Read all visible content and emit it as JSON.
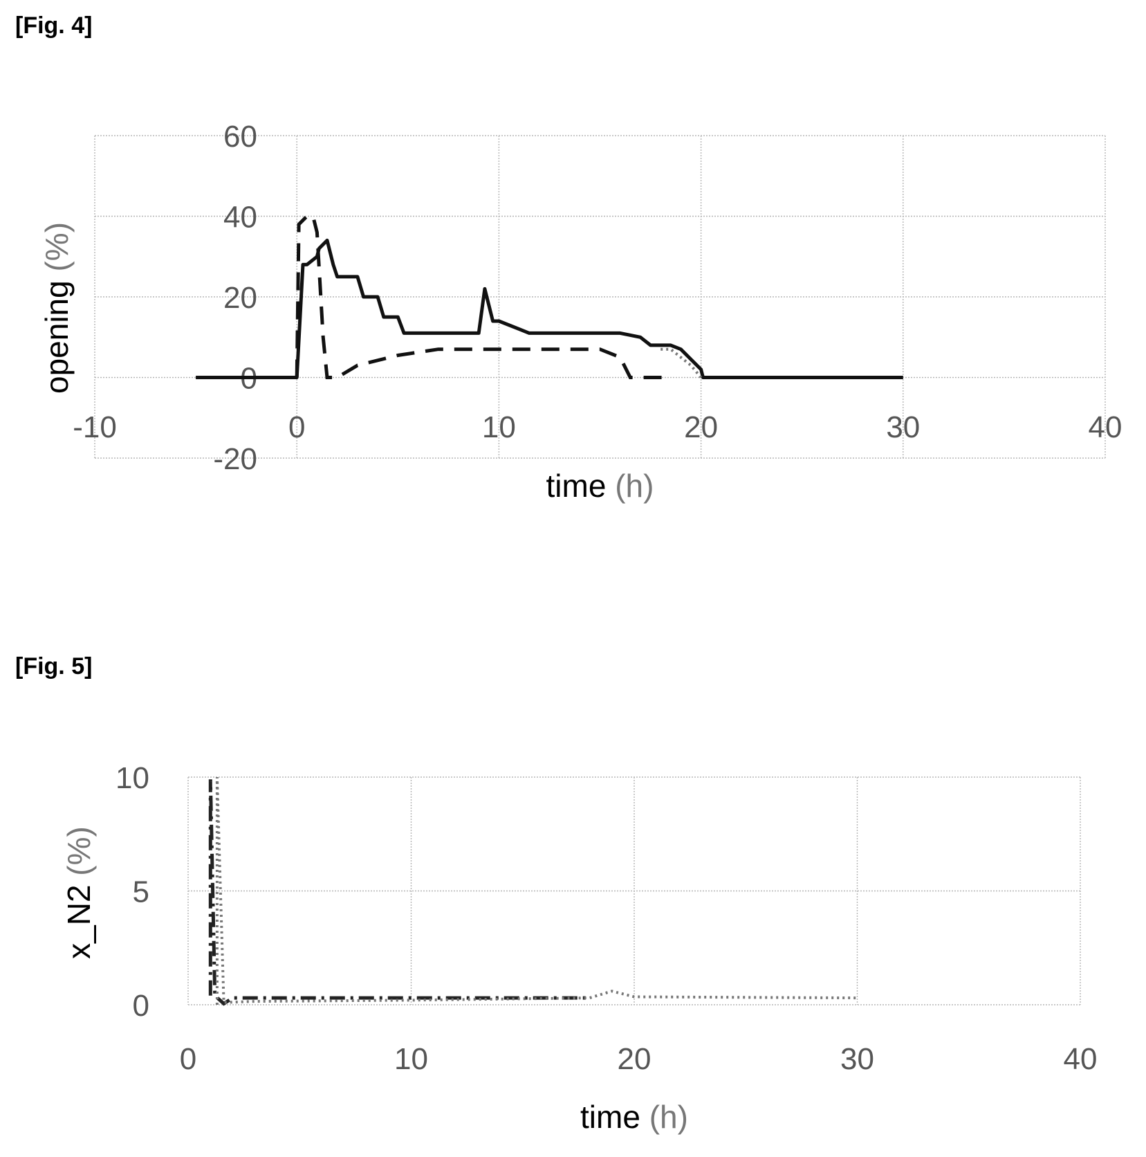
{
  "figures": [
    {
      "label": "[Fig. 4]"
    },
    {
      "label": "[Fig. 5]"
    }
  ],
  "chart_data": [
    {
      "type": "line",
      "xlabel": "time",
      "xunit": "(h)",
      "ylabel": "opening",
      "yunit": "(%)",
      "xlim": [
        -10,
        40
      ],
      "ylim": [
        -20,
        60
      ],
      "xticks": [
        -10,
        0,
        10,
        20,
        30,
        40
      ],
      "yticks": [
        -20,
        0,
        20,
        40,
        60
      ],
      "grid": true,
      "series": [
        {
          "style": "solid",
          "x": [
            -5,
            0,
            0.3,
            0.5,
            1.0,
            1.1,
            1.5,
            1.8,
            2.0,
            3.0,
            3.3,
            4.0,
            4.3,
            5.0,
            5.3,
            9.0,
            9.3,
            9.7,
            10.0,
            11.0,
            11.5,
            16.0,
            17.0,
            17.5,
            18.5,
            19.0,
            20.0,
            20.1,
            30.0
          ],
          "y": [
            0,
            0,
            28,
            28,
            30,
            32,
            34,
            28,
            25,
            25,
            20,
            20,
            15,
            15,
            11,
            11,
            22,
            14,
            14,
            12,
            11,
            11,
            10,
            8,
            8,
            7,
            2,
            0,
            0
          ]
        },
        {
          "style": "dashed",
          "x": [
            0,
            0.1,
            0.5,
            0.8,
            1.0,
            1.3,
            1.5,
            2.0,
            3.0,
            5.0,
            7.0,
            9.0,
            12.0,
            15.0,
            16.0,
            16.5,
            17.0,
            18.5
          ],
          "y": [
            0,
            38,
            40,
            40,
            36,
            10,
            0,
            0,
            3,
            5.5,
            7,
            7,
            7,
            7,
            5,
            0,
            0,
            0
          ]
        },
        {
          "style": "dotted",
          "x": [
            18.0,
            18.5,
            19.5,
            20.0
          ],
          "y": [
            7,
            7,
            3,
            0
          ]
        }
      ]
    },
    {
      "type": "line",
      "xlabel": "time",
      "xunit": "(h)",
      "ylabel": "x_N2",
      "yunit": "(%)",
      "xlim": [
        0,
        40
      ],
      "ylim": [
        0,
        10
      ],
      "xticks": [
        0,
        10,
        20,
        30,
        40
      ],
      "yticks": [
        0,
        5,
        10
      ],
      "grid": true,
      "series": [
        {
          "style": "dashdot",
          "x": [
            1.0,
            1.0,
            1.2,
            1.6,
            2.0,
            18.0
          ],
          "y": [
            0.4,
            9.9,
            0.4,
            0.05,
            0.3,
            0.3
          ]
        },
        {
          "style": "dotted",
          "x": [
            1.3,
            1.3,
            1.6,
            3.0,
            10.0,
            18.0,
            19.0,
            20.0,
            30.0
          ],
          "y": [
            0,
            10,
            0.1,
            0.15,
            0.2,
            0.3,
            0.6,
            0.35,
            0.3
          ]
        }
      ]
    }
  ]
}
